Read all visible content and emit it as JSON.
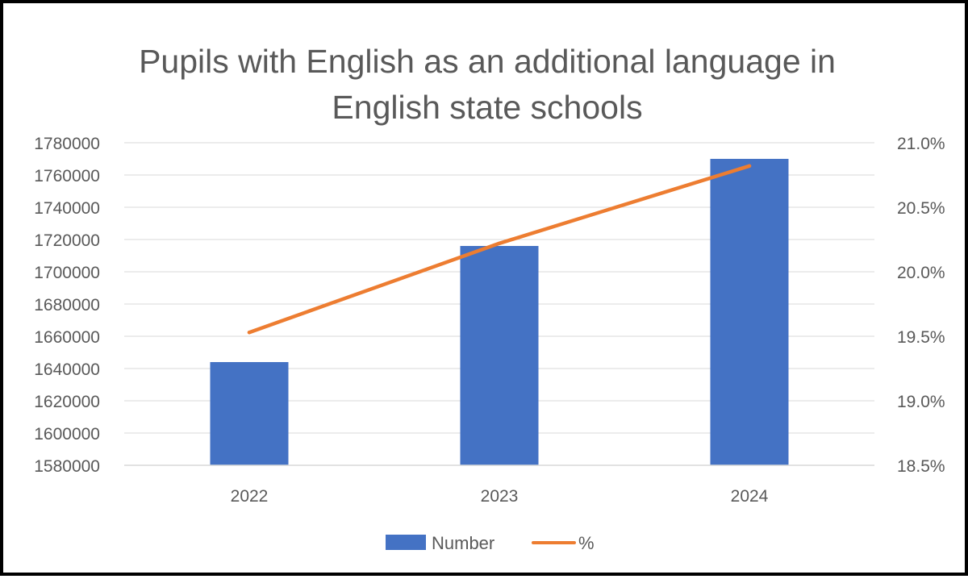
{
  "chart_data": {
    "type": "bar",
    "title": "Pupils with English as an additional language in English state schools",
    "title_lines": [
      "Pupils with English as an additional language in",
      "English state schools"
    ],
    "categories": [
      "2022",
      "2023",
      "2024"
    ],
    "series": [
      {
        "name": "Number",
        "type": "bar",
        "axis": "left",
        "color": "#4472C4",
        "values": [
          1644000,
          1716000,
          1770000
        ]
      },
      {
        "name": "%",
        "type": "line",
        "axis": "right",
        "color": "#ED7D31",
        "values": [
          0.1953,
          0.2022,
          0.2082
        ]
      }
    ],
    "y_left": {
      "min": 1580000,
      "max": 1780000,
      "step": 20000,
      "tick_labels": [
        "1580000",
        "1600000",
        "1620000",
        "1640000",
        "1660000",
        "1680000",
        "1700000",
        "1720000",
        "1740000",
        "1760000",
        "1780000"
      ]
    },
    "y_right": {
      "min": 0.185,
      "max": 0.21,
      "step": 0.005,
      "tick_labels": [
        "18.5%",
        "19.0%",
        "19.5%",
        "20.0%",
        "20.5%",
        "21.0%"
      ]
    },
    "xlabel": "",
    "ylabel": "",
    "grid": true,
    "legend_position": "bottom"
  }
}
